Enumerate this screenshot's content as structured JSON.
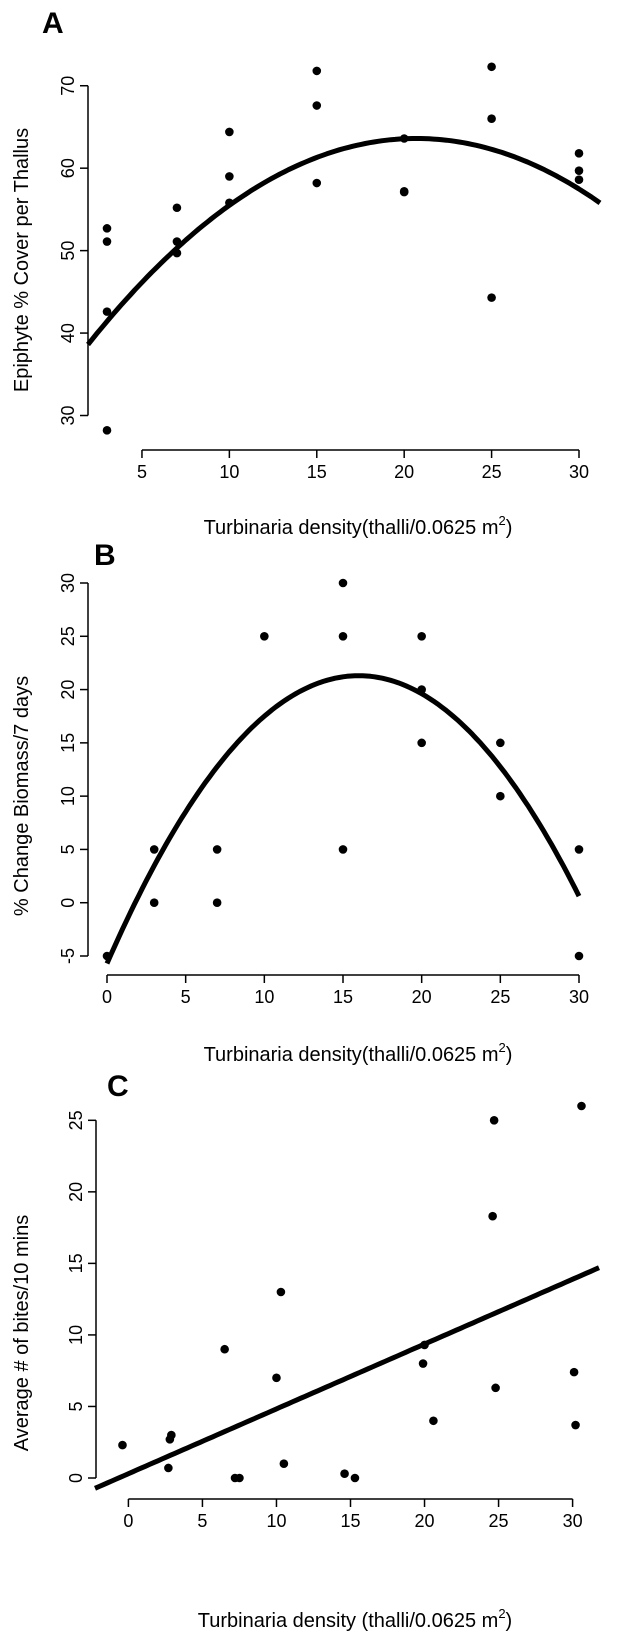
{
  "chart_data": [
    {
      "panel": "A",
      "type": "scatter",
      "xlabel": "Turbinaria density(thalli/0.0625 m",
      "xlabel_sup": "2",
      "xlabel_close": ")",
      "ylabel": "Epiphyte % Cover per Thallus",
      "xlim": [
        3,
        30
      ],
      "ylim": [
        28,
        73
      ],
      "xticks": [
        5,
        10,
        15,
        20,
        25,
        30
      ],
      "yticks": [
        30,
        40,
        50,
        60,
        70
      ],
      "points": [
        {
          "x": 3,
          "y": 28.2
        },
        {
          "x": 3,
          "y": 42.6
        },
        {
          "x": 3,
          "y": 51.1
        },
        {
          "x": 3,
          "y": 52.7
        },
        {
          "x": 7,
          "y": 49.7
        },
        {
          "x": 7,
          "y": 51.1
        },
        {
          "x": 7,
          "y": 55.2
        },
        {
          "x": 10,
          "y": 55.8
        },
        {
          "x": 10,
          "y": 59.0
        },
        {
          "x": 10,
          "y": 64.4
        },
        {
          "x": 15,
          "y": 58.2
        },
        {
          "x": 15,
          "y": 67.6
        },
        {
          "x": 15,
          "y": 71.8
        },
        {
          "x": 20,
          "y": 57.1
        },
        {
          "x": 20,
          "y": 57.2
        },
        {
          "x": 20,
          "y": 63.6
        },
        {
          "x": 25,
          "y": 44.3
        },
        {
          "x": 25,
          "y": 66.0
        },
        {
          "x": 25,
          "y": 72.3
        },
        {
          "x": 30,
          "y": 58.6
        },
        {
          "x": 30,
          "y": 59.7
        },
        {
          "x": 30,
          "y": 61.8
        }
      ],
      "fit": {
        "kind": "quadratic",
        "vertex_x": 20.7,
        "vertex_y": 63.6,
        "a": -0.0708
      }
    },
    {
      "panel": "B",
      "type": "scatter",
      "xlabel": "Turbinaria density(thalli/0.0625 m",
      "xlabel_sup": "2",
      "xlabel_close": ")",
      "ylabel": "% Change Biomass/7 days",
      "xlim": [
        0,
        30
      ],
      "ylim": [
        -5,
        30
      ],
      "xticks": [
        0,
        5,
        10,
        15,
        20,
        25,
        30
      ],
      "yticks": [
        -5,
        0,
        5,
        10,
        15,
        20,
        25,
        30
      ],
      "points": [
        {
          "x": 0,
          "y": -5
        },
        {
          "x": 3,
          "y": 0
        },
        {
          "x": 3,
          "y": 5
        },
        {
          "x": 7,
          "y": 0
        },
        {
          "x": 7,
          "y": 5
        },
        {
          "x": 10,
          "y": 25
        },
        {
          "x": 15,
          "y": 5
        },
        {
          "x": 15,
          "y": 25
        },
        {
          "x": 15,
          "y": 30
        },
        {
          "x": 20,
          "y": 15
        },
        {
          "x": 20,
          "y": 20
        },
        {
          "x": 20,
          "y": 25
        },
        {
          "x": 25,
          "y": 10
        },
        {
          "x": 25,
          "y": 15
        },
        {
          "x": 30,
          "y": -5
        },
        {
          "x": 30,
          "y": 5
        }
      ],
      "fit": {
        "kind": "quadratic",
        "vertex_x": 16,
        "vertex_y": 21.3,
        "a": -0.1055
      }
    },
    {
      "panel": "C",
      "type": "scatter",
      "xlabel": "Turbinaria density (thalli/0.0625 m",
      "xlabel_sup": "2",
      "xlabel_close": ")",
      "ylabel": "Average # of bites/10 mins",
      "xlim": [
        -0.5,
        30.5
      ],
      "ylim": [
        0,
        26
      ],
      "xticks": [
        0,
        5,
        10,
        15,
        20,
        25,
        30
      ],
      "yticks": [
        0,
        5,
        10,
        15,
        20,
        25
      ],
      "points": [
        {
          "x": -0.4,
          "y": 2.3
        },
        {
          "x": 2.7,
          "y": 0.7
        },
        {
          "x": 2.8,
          "y": 2.7
        },
        {
          "x": 2.9,
          "y": 3.0
        },
        {
          "x": 6.5,
          "y": 9.0
        },
        {
          "x": 7.2,
          "y": 0.0
        },
        {
          "x": 7.5,
          "y": 0.0
        },
        {
          "x": 10.0,
          "y": 7.0
        },
        {
          "x": 10.3,
          "y": 13.0
        },
        {
          "x": 10.5,
          "y": 1.0
        },
        {
          "x": 14.6,
          "y": 0.3
        },
        {
          "x": 15.3,
          "y": 0.0
        },
        {
          "x": 19.9,
          "y": 8.0
        },
        {
          "x": 20.0,
          "y": 9.3
        },
        {
          "x": 20.6,
          "y": 4.0
        },
        {
          "x": 24.6,
          "y": 18.3
        },
        {
          "x": 24.7,
          "y": 25.0
        },
        {
          "x": 24.8,
          "y": 6.3
        },
        {
          "x": 30.1,
          "y": 7.4
        },
        {
          "x": 30.2,
          "y": 3.7
        },
        {
          "x": 30.6,
          "y": 26.0
        }
      ],
      "fit": {
        "kind": "linear",
        "slope": 0.453,
        "intercept": 0.3
      }
    }
  ]
}
